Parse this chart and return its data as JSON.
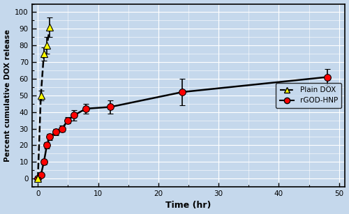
{
  "plain_dox_x": [
    0,
    0.5,
    1,
    1.5,
    2
  ],
  "plain_dox_y": [
    0,
    50,
    75,
    80,
    91
  ],
  "plain_dox_yerr": [
    1,
    3,
    4,
    5,
    6
  ],
  "rgod_hnp_x": [
    0,
    0.5,
    1,
    1.5,
    2,
    3,
    4,
    5,
    6,
    8,
    12,
    24,
    48
  ],
  "rgod_hnp_y": [
    0,
    2,
    10,
    20,
    25,
    28,
    30,
    35,
    38,
    42,
    43,
    52,
    61
  ],
  "rgod_hnp_yerr": [
    0.5,
    1,
    1.5,
    2,
    2,
    2,
    2,
    2,
    3,
    3,
    4,
    8,
    5
  ],
  "xlabel": "Time (hr)",
  "ylabel": "Percent cumulative DOX release",
  "xlim": [
    -1,
    51
  ],
  "ylim": [
    -5,
    105
  ],
  "xticks": [
    0,
    10,
    20,
    30,
    40,
    50
  ],
  "yticks": [
    0,
    10,
    20,
    30,
    40,
    50,
    60,
    70,
    80,
    90,
    100
  ],
  "plain_dox_color": "#FFFF00",
  "plain_dox_marker": "^",
  "rgod_hnp_color": "#FF0000",
  "rgod_hnp_marker": "o",
  "line_color": "#000000",
  "background_color": "#C5D8EC",
  "grid_color": "#FFFFFF",
  "legend_plain_dox": "Plain DOX",
  "legend_rgod_hnp": "rGOD-HNP",
  "marker_size": 7,
  "line_width": 1.8,
  "figwidth": 5.0,
  "figheight": 3.07,
  "dpi": 100
}
